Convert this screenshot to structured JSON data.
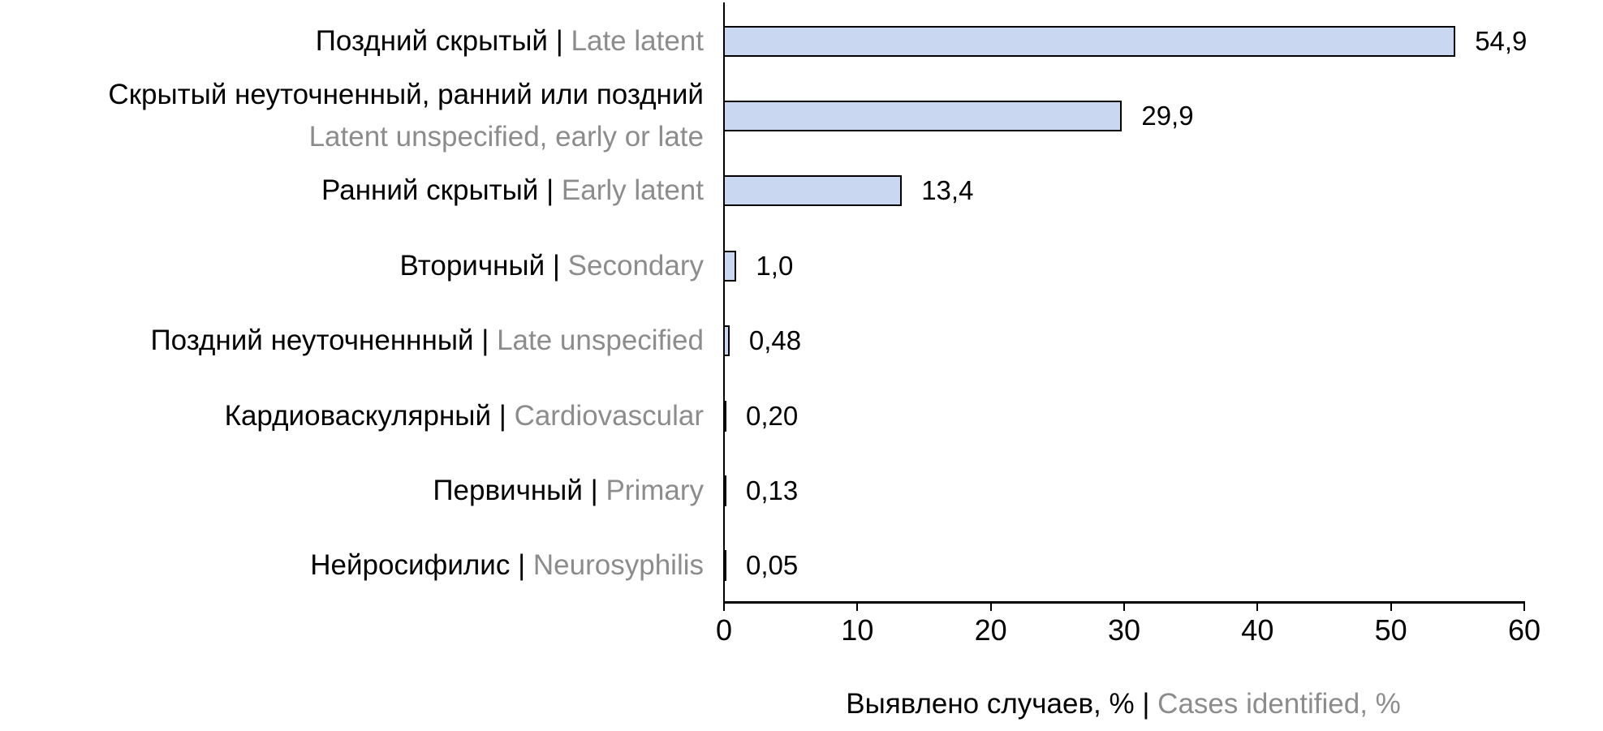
{
  "chart_data": {
    "type": "bar",
    "orientation": "horizontal",
    "categories": [
      {
        "ru": "Поздний скрытый",
        "en": "Late latent",
        "multiline": false
      },
      {
        "ru": "Скрытый неуточненный, ранний или поздний",
        "en": "Latent unspecified, early or late",
        "multiline": true
      },
      {
        "ru": "Ранний скрытый",
        "en": "Early latent",
        "multiline": false
      },
      {
        "ru": "Вторичный",
        "en": "Secondary",
        "multiline": false
      },
      {
        "ru": "Поздний неуточненнный",
        "en": "Late unspecified",
        "multiline": false
      },
      {
        "ru": "Кардиоваскулярный",
        "en": "Cardiovascular",
        "multiline": false
      },
      {
        "ru": "Первичный",
        "en": "Primary",
        "multiline": false
      },
      {
        "ru": "Нейросифилис",
        "en": "Neurosyphilis",
        "multiline": false
      }
    ],
    "values": [
      54.9,
      29.9,
      13.4,
      1.0,
      0.48,
      0.2,
      0.13,
      0.05
    ],
    "value_labels": [
      "54,9",
      "29,9",
      "13,4",
      "1,0",
      "0,48",
      "0,20",
      "0,13",
      "0,05"
    ],
    "label_separator": " | ",
    "xlabel_ru": "Выявлено случаев, %",
    "xlabel_en": "Cases identified, %",
    "xlim": [
      0,
      60
    ],
    "x_ticks": [
      "0",
      "10",
      "20",
      "30",
      "40",
      "50",
      "60"
    ],
    "grid": "off",
    "legend": "none",
    "colors": {
      "bar_fill": "#C9D8F0",
      "bar_border": "#000000",
      "text_primary": "#000000",
      "text_secondary": "#8C8C8C",
      "axis": "#000000",
      "background": "#FFFFFF"
    }
  }
}
